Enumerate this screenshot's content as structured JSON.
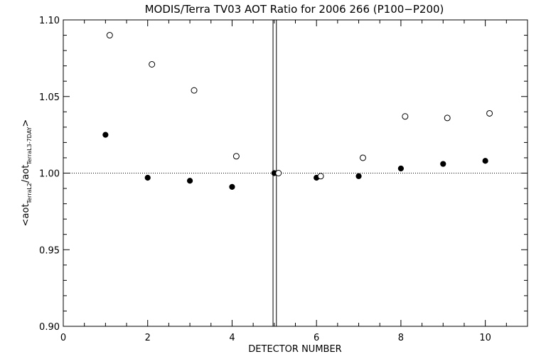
{
  "chart_data": {
    "type": "scatter",
    "title": "MODIS/Terra TV03 AOT Ratio for 2006 266 (P100−P200)",
    "xlabel": "DETECTOR NUMBER",
    "ylabel": {
      "open": "<",
      "base1": "aot",
      "sub1": "TerraL2",
      "sep": "/",
      "base2": "aot",
      "sub2": "TerraL3-7DAY",
      "close": ">"
    },
    "xlim": [
      0,
      11
    ],
    "ylim": [
      0.9,
      1.1
    ],
    "xticks": [
      0,
      2,
      4,
      6,
      8,
      10
    ],
    "xtick_labels": [
      "0",
      "2",
      "4",
      "6",
      "8",
      "10"
    ],
    "yticks": [
      0.9,
      0.95,
      1.0,
      1.05,
      1.1
    ],
    "ytick_labels": [
      "0.90",
      "0.95",
      "1.00",
      "1.05",
      "1.10"
    ],
    "reference_line_y": 1.0,
    "vertical_lines_x": [
      4.97,
      5.05
    ],
    "series": [
      {
        "marker": "filled-circle",
        "x": [
          1,
          2,
          3,
          4,
          5,
          6,
          7,
          8,
          9,
          10
        ],
        "y": [
          1.025,
          0.997,
          0.995,
          0.991,
          1.0,
          0.997,
          0.998,
          1.003,
          1.006,
          1.008
        ]
      },
      {
        "marker": "open-circle",
        "x": [
          1.1,
          2.1,
          3.1,
          4.1,
          5.1,
          6.1,
          7.1,
          8.1,
          9.1,
          10.1
        ],
        "y": [
          1.09,
          1.071,
          1.054,
          1.011,
          1.0,
          0.998,
          1.01,
          1.037,
          1.036,
          1.039
        ]
      }
    ]
  }
}
